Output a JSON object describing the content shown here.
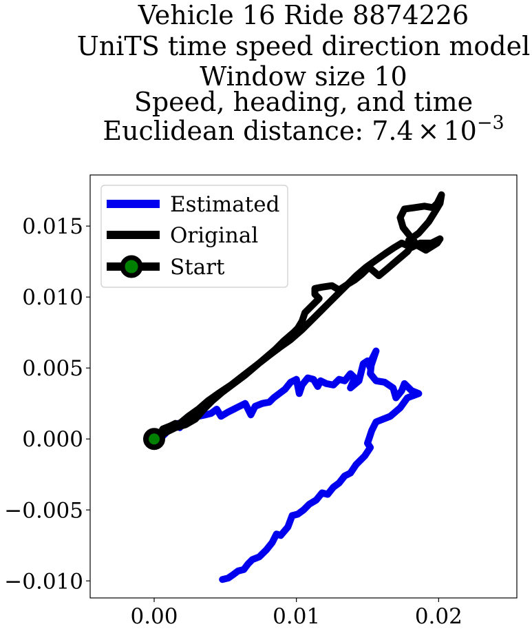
{
  "chart_data": {
    "type": "line",
    "title_lines": [
      "Vehicle 16 Ride 8874226",
      "UniTS time speed direction model",
      "Window size 10",
      "Speed, heading, and time"
    ],
    "title_distance": {
      "prefix": "Euclidean distance: 7.4",
      "times": "×",
      "base": "10",
      "exponent": "−3"
    },
    "xlim": [
      -0.0045,
      0.0255
    ],
    "ylim": [
      -0.0112,
      0.0186
    ],
    "x_ticks": [
      {
        "value": 0.0,
        "label": "0.00"
      },
      {
        "value": 0.01,
        "label": "0.01"
      },
      {
        "value": 0.02,
        "label": "0.02"
      }
    ],
    "y_ticks": [
      {
        "value": 0.015,
        "label": "0.015"
      },
      {
        "value": 0.01,
        "label": "0.010"
      },
      {
        "value": 0.005,
        "label": "0.005"
      },
      {
        "value": 0.0,
        "label": "0.000"
      },
      {
        "value": -0.005,
        "label": "−0.005"
      },
      {
        "value": -0.01,
        "label": "−0.010"
      }
    ],
    "grid": false,
    "legend_position": "top-left",
    "colors": {
      "estimated": "#0000ee",
      "original": "#000000",
      "start_edge": "#000000",
      "start_face": "#008000"
    },
    "series": [
      {
        "name": "Estimated",
        "points": [
          [
            0.0,
            0.0
          ],
          [
            0.0005,
            0.0001
          ],
          [
            0.001,
            0.0006
          ],
          [
            0.0013,
            0.0009
          ],
          [
            0.0017,
            0.0011
          ],
          [
            0.0018,
            0.0008
          ],
          [
            0.0021,
            0.0012
          ],
          [
            0.0025,
            0.0015
          ],
          [
            0.0028,
            0.0014
          ],
          [
            0.0031,
            0.0016
          ],
          [
            0.0036,
            0.0017
          ],
          [
            0.004,
            0.0018
          ],
          [
            0.0044,
            0.0021
          ],
          [
            0.0047,
            0.0016
          ],
          [
            0.0052,
            0.0019
          ],
          [
            0.0056,
            0.0021
          ],
          [
            0.006,
            0.0023
          ],
          [
            0.0064,
            0.0025
          ],
          [
            0.0068,
            0.0017
          ],
          [
            0.0071,
            0.0023
          ],
          [
            0.0076,
            0.0025
          ],
          [
            0.0081,
            0.0026
          ],
          [
            0.0084,
            0.0029
          ],
          [
            0.0088,
            0.0032
          ],
          [
            0.0092,
            0.0035
          ],
          [
            0.0096,
            0.004
          ],
          [
            0.01,
            0.0042
          ],
          [
            0.0102,
            0.0032
          ],
          [
            0.0104,
            0.0038
          ],
          [
            0.0108,
            0.0043
          ],
          [
            0.0112,
            0.0042
          ],
          [
            0.0115,
            0.0037
          ],
          [
            0.0117,
            0.0041
          ],
          [
            0.0121,
            0.0039
          ],
          [
            0.0126,
            0.0038
          ],
          [
            0.013,
            0.0042
          ],
          [
            0.0134,
            0.0041
          ],
          [
            0.0138,
            0.0046
          ],
          [
            0.0141,
            0.0043
          ],
          [
            0.0138,
            0.0036
          ],
          [
            0.0144,
            0.0041
          ],
          [
            0.0147,
            0.0053
          ],
          [
            0.015,
            0.0055
          ],
          [
            0.0152,
            0.005
          ],
          [
            0.0156,
            0.0062
          ],
          [
            0.0153,
            0.0056
          ],
          [
            0.0152,
            0.0046
          ],
          [
            0.0156,
            0.0041
          ],
          [
            0.0162,
            0.004
          ],
          [
            0.0168,
            0.0036
          ],
          [
            0.017,
            0.0029
          ],
          [
            0.0174,
            0.0034
          ],
          [
            0.0176,
            0.0039
          ],
          [
            0.0181,
            0.0034
          ],
          [
            0.0186,
            0.0032
          ],
          [
            0.0178,
            0.0029
          ],
          [
            0.0173,
            0.0022
          ],
          [
            0.0166,
            0.0016
          ],
          [
            0.0156,
            0.0012
          ],
          [
            0.0153,
            0.0006
          ],
          [
            0.015,
            -0.0003
          ],
          [
            0.0152,
            -0.0006
          ],
          [
            0.0148,
            -0.0012
          ],
          [
            0.0142,
            -0.0018
          ],
          [
            0.0138,
            -0.0024
          ],
          [
            0.0134,
            -0.0026
          ],
          [
            0.013,
            -0.0031
          ],
          [
            0.0126,
            -0.0034
          ],
          [
            0.0122,
            -0.0039
          ],
          [
            0.0118,
            -0.0038
          ],
          [
            0.0114,
            -0.0043
          ],
          [
            0.0109,
            -0.0046
          ],
          [
            0.0105,
            -0.005
          ],
          [
            0.0101,
            -0.0053
          ],
          [
            0.0097,
            -0.0054
          ],
          [
            0.0094,
            -0.0062
          ],
          [
            0.0089,
            -0.0068
          ],
          [
            0.0086,
            -0.0067
          ],
          [
            0.0083,
            -0.0073
          ],
          [
            0.0079,
            -0.0078
          ],
          [
            0.0074,
            -0.0083
          ],
          [
            0.0069,
            -0.0085
          ],
          [
            0.0066,
            -0.0088
          ],
          [
            0.0063,
            -0.0092
          ],
          [
            0.0059,
            -0.0093
          ],
          [
            0.0055,
            -0.0096
          ],
          [
            0.0052,
            -0.0098
          ],
          [
            0.0048,
            -0.0099
          ]
        ]
      },
      {
        "name": "Original",
        "points": [
          [
            0.0,
            0.0
          ],
          [
            0.0006,
            0.0005
          ],
          [
            0.0012,
            0.0008
          ],
          [
            0.0018,
            0.0011
          ],
          [
            0.0024,
            0.0016
          ],
          [
            0.0031,
            0.0021
          ],
          [
            0.0038,
            0.0027
          ],
          [
            0.0045,
            0.0032
          ],
          [
            0.0054,
            0.0038
          ],
          [
            0.0063,
            0.0045
          ],
          [
            0.0072,
            0.0052
          ],
          [
            0.0081,
            0.0059
          ],
          [
            0.0089,
            0.0065
          ],
          [
            0.0096,
            0.007
          ],
          [
            0.0104,
            0.0077
          ],
          [
            0.0112,
            0.0085
          ],
          [
            0.0118,
            0.0091
          ],
          [
            0.0123,
            0.0096
          ],
          [
            0.0129,
            0.0102
          ],
          [
            0.0136,
            0.0109
          ],
          [
            0.0142,
            0.0115
          ],
          [
            0.0149,
            0.0121
          ],
          [
            0.0156,
            0.0126
          ],
          [
            0.0163,
            0.0131
          ],
          [
            0.0169,
            0.0135
          ],
          [
            0.0174,
            0.0138
          ],
          [
            0.0181,
            0.0135
          ],
          [
            0.0187,
            0.0138
          ],
          [
            0.0195,
            0.0138
          ],
          [
            0.0201,
            0.0141
          ],
          [
            0.0199,
            0.0138
          ],
          [
            0.0191,
            0.0133
          ],
          [
            0.0184,
            0.0137
          ],
          [
            0.0179,
            0.014
          ],
          [
            0.0186,
            0.0145
          ],
          [
            0.0193,
            0.0153
          ],
          [
            0.0198,
            0.0161
          ],
          [
            0.0201,
            0.0166
          ],
          [
            0.0202,
            0.0172
          ],
          [
            0.0199,
            0.0166
          ],
          [
            0.0196,
            0.0163
          ],
          [
            0.019,
            0.0164
          ],
          [
            0.0183,
            0.0163
          ],
          [
            0.0176,
            0.0162
          ],
          [
            0.0173,
            0.0156
          ],
          [
            0.0175,
            0.0149
          ],
          [
            0.0179,
            0.0144
          ],
          [
            0.0183,
            0.0139
          ],
          [
            0.0178,
            0.0132
          ],
          [
            0.0171,
            0.0126
          ],
          [
            0.0164,
            0.012
          ],
          [
            0.0158,
            0.0115
          ],
          [
            0.0151,
            0.0121
          ],
          [
            0.0146,
            0.0116
          ],
          [
            0.0141,
            0.0112
          ],
          [
            0.0136,
            0.0109
          ],
          [
            0.013,
            0.0105
          ],
          [
            0.0125,
            0.0108
          ],
          [
            0.0118,
            0.0107
          ],
          [
            0.0113,
            0.0106
          ],
          [
            0.0113,
            0.0102
          ],
          [
            0.0116,
            0.0099
          ],
          [
            0.0111,
            0.0094
          ],
          [
            0.0106,
            0.0089
          ],
          [
            0.0104,
            0.0083
          ],
          [
            0.0101,
            0.0078
          ],
          [
            0.0098,
            0.0075
          ],
          [
            0.0091,
            0.0069
          ],
          [
            0.0085,
            0.0063
          ],
          [
            0.0078,
            0.0057
          ],
          [
            0.0071,
            0.0051
          ],
          [
            0.0064,
            0.0045
          ],
          [
            0.0056,
            0.0039
          ],
          [
            0.0048,
            0.0033
          ],
          [
            0.0041,
            0.0027
          ],
          [
            0.0035,
            0.0021
          ],
          [
            0.0029,
            0.0014
          ],
          [
            0.0022,
            0.001
          ],
          [
            0.0015,
            0.0008
          ],
          [
            0.0009,
            0.0005
          ],
          [
            0.0004,
            0.0002
          ],
          [
            0.0006,
            0.0007
          ],
          [
            0.0011,
            0.0009
          ],
          [
            0.0015,
            0.0011
          ]
        ]
      }
    ],
    "start_point": {
      "name": "Start",
      "x": 0.0,
      "y": 0.0
    }
  }
}
